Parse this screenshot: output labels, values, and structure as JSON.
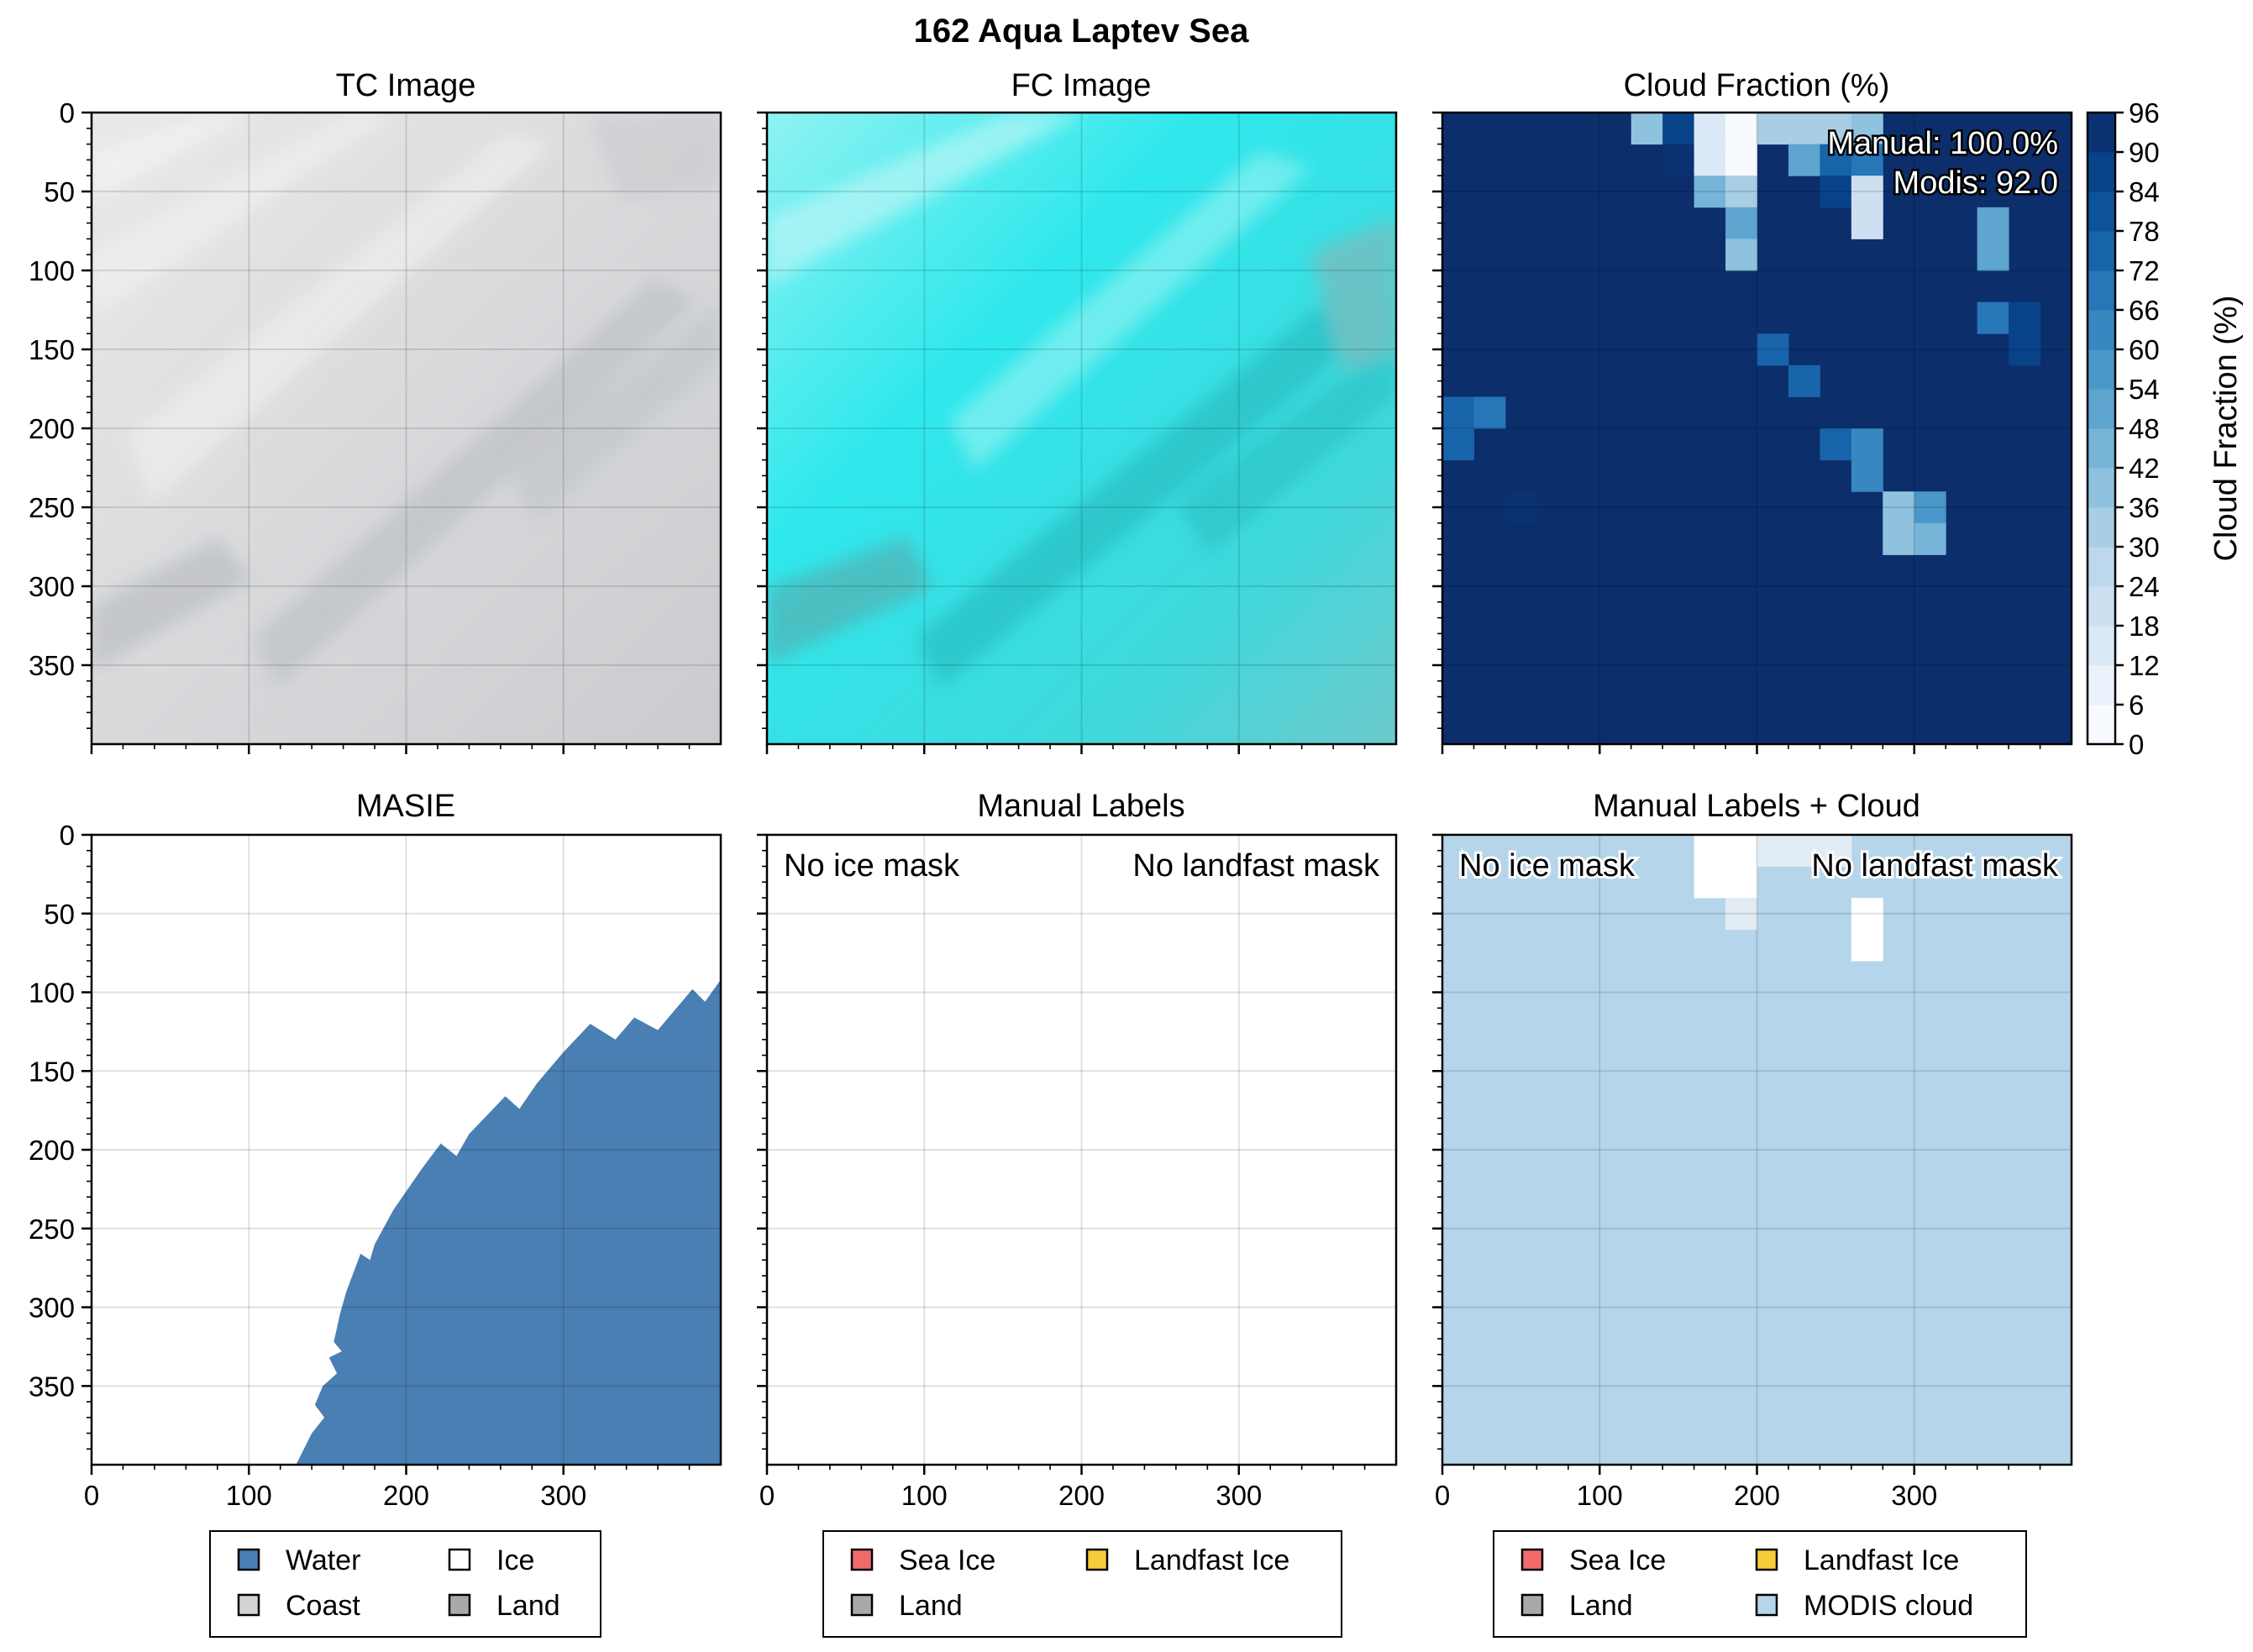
{
  "figure": {
    "suptitle": "162 Aqua Laptev Sea"
  },
  "colors": {
    "water": "#4a7fb4",
    "ice": "#ffffff",
    "coast": "#d3d3d3",
    "land": "#a9a9a9",
    "sea_ice": "#f26a6a",
    "landfast_ice": "#f5cc3a",
    "modis_cloud": "#b5d5ea",
    "cloud_bg": "#0c2e6b"
  },
  "chart_data": [
    {
      "id": "tc",
      "type": "image",
      "title": "TC Image",
      "xlim": [
        0,
        400
      ],
      "ylim": [
        400,
        0
      ],
      "yticks": [
        0,
        50,
        100,
        150,
        200,
        250,
        300,
        350
      ],
      "xticks": [
        0,
        100,
        200,
        300
      ],
      "xtick_labels_visible": false,
      "content": "true-color satellite image, grey-white cloud cover"
    },
    {
      "id": "fc",
      "type": "image",
      "title": "FC Image",
      "xlim": [
        0,
        400
      ],
      "ylim": [
        400,
        0
      ],
      "xticks": [
        0,
        100,
        200,
        300
      ],
      "xtick_labels_visible": false,
      "content": "false-color satellite image, cyan cloud cover"
    },
    {
      "id": "cloud",
      "type": "heatmap",
      "title": "Cloud Fraction (%)",
      "xlim": [
        0,
        400
      ],
      "ylim": [
        400,
        0
      ],
      "cell_size": 20,
      "background_value": 96,
      "cells": [
        {
          "x": 120,
          "y": 0,
          "v": 36
        },
        {
          "x": 140,
          "y": 0,
          "v": 84
        },
        {
          "x": 160,
          "y": 0,
          "v": 12
        },
        {
          "x": 180,
          "y": 0,
          "v": 0
        },
        {
          "x": 200,
          "y": 0,
          "v": 30
        },
        {
          "x": 220,
          "y": 0,
          "v": 30
        },
        {
          "x": 240,
          "y": 0,
          "v": 30
        },
        {
          "x": 260,
          "y": 0,
          "v": 36
        },
        {
          "x": 140,
          "y": 20,
          "v": 90
        },
        {
          "x": 160,
          "y": 20,
          "v": 12
        },
        {
          "x": 180,
          "y": 20,
          "v": 0
        },
        {
          "x": 220,
          "y": 20,
          "v": 48
        },
        {
          "x": 240,
          "y": 20,
          "v": 72
        },
        {
          "x": 260,
          "y": 20,
          "v": 66
        },
        {
          "x": 160,
          "y": 40,
          "v": 42
        },
        {
          "x": 180,
          "y": 40,
          "v": 30
        },
        {
          "x": 240,
          "y": 40,
          "v": 84
        },
        {
          "x": 260,
          "y": 40,
          "v": 18
        },
        {
          "x": 180,
          "y": 60,
          "v": 48
        },
        {
          "x": 260,
          "y": 60,
          "v": 18
        },
        {
          "x": 340,
          "y": 60,
          "v": 48
        },
        {
          "x": 180,
          "y": 80,
          "v": 36
        },
        {
          "x": 340,
          "y": 80,
          "v": 48
        },
        {
          "x": 340,
          "y": 120,
          "v": 66
        },
        {
          "x": 360,
          "y": 120,
          "v": 84
        },
        {
          "x": 360,
          "y": 140,
          "v": 84
        },
        {
          "x": 200,
          "y": 140,
          "v": 72
        },
        {
          "x": 220,
          "y": 160,
          "v": 72
        },
        {
          "x": 0,
          "y": 180,
          "v": 72
        },
        {
          "x": 20,
          "y": 180,
          "v": 66
        },
        {
          "x": 0,
          "y": 200,
          "v": 72
        },
        {
          "x": 240,
          "y": 200,
          "v": 72
        },
        {
          "x": 260,
          "y": 200,
          "v": 60
        },
        {
          "x": 260,
          "y": 220,
          "v": 60
        },
        {
          "x": 40,
          "y": 240,
          "v": 90
        },
        {
          "x": 280,
          "y": 240,
          "v": 36
        },
        {
          "x": 300,
          "y": 240,
          "v": 54
        },
        {
          "x": 280,
          "y": 260,
          "v": 36
        },
        {
          "x": 300,
          "y": 260,
          "v": 42
        }
      ],
      "annotations": [
        "Manual: 100.0%",
        "Modis: 92.0"
      ],
      "colorbar": {
        "label": "Cloud Fraction (%)",
        "levels": [
          0,
          6,
          12,
          18,
          24,
          30,
          36,
          42,
          48,
          54,
          60,
          66,
          72,
          78,
          84,
          90,
          96
        ],
        "tick_labels": [
          "0",
          "6",
          "12",
          "18",
          "24",
          "30",
          "36",
          "42",
          "48",
          "54",
          "60",
          "66",
          "72",
          "78",
          "84",
          "90",
          "96"
        ],
        "colors": [
          "#f7fbff",
          "#e9f2fb",
          "#dbe9f6",
          "#cde0f1",
          "#bdd7ec",
          "#a8cee4",
          "#8fc2de",
          "#76b4d8",
          "#5ea5d0",
          "#4a97c9",
          "#3787c0",
          "#2676b8",
          "#1864aa",
          "#0d539a",
          "#08438a",
          "#0a3273"
        ]
      }
    },
    {
      "id": "masie",
      "type": "area",
      "title": "MASIE",
      "xlim": [
        0,
        400
      ],
      "ylim": [
        400,
        0
      ],
      "xticks": [
        0,
        100,
        200,
        300
      ],
      "yticks": [
        0,
        50,
        100,
        150,
        200,
        250,
        300,
        350
      ],
      "water_boundary": [
        [
          400,
          92
        ],
        [
          390,
          106
        ],
        [
          382,
          98
        ],
        [
          360,
          124
        ],
        [
          345,
          116
        ],
        [
          333,
          130
        ],
        [
          317,
          120
        ],
        [
          300,
          138
        ],
        [
          283,
          158
        ],
        [
          272,
          174
        ],
        [
          263,
          166
        ],
        [
          240,
          190
        ],
        [
          232,
          204
        ],
        [
          222,
          196
        ],
        [
          210,
          212
        ],
        [
          192,
          238
        ],
        [
          180,
          260
        ],
        [
          177,
          270
        ],
        [
          171,
          266
        ],
        [
          162,
          290
        ],
        [
          158,
          304
        ],
        [
          154,
          322
        ],
        [
          159,
          328
        ],
        [
          151,
          332
        ],
        [
          156,
          342
        ],
        [
          147,
          350
        ],
        [
          142,
          362
        ],
        [
          148,
          370
        ],
        [
          140,
          380
        ],
        [
          134,
          392
        ],
        [
          130,
          400
        ]
      ],
      "legend": [
        {
          "label": "Water",
          "color_key": "water"
        },
        {
          "label": "Ice",
          "color_key": "ice"
        },
        {
          "label": "Coast",
          "color_key": "coast"
        },
        {
          "label": "Land",
          "color_key": "land"
        }
      ]
    },
    {
      "id": "manual",
      "type": "heatmap",
      "title": "Manual Labels",
      "xlim": [
        0,
        400
      ],
      "ylim": [
        400,
        0
      ],
      "xticks": [
        0,
        100,
        200,
        300
      ],
      "annotations": [
        "No ice mask",
        "No landfast mask"
      ],
      "legend": [
        {
          "label": "Sea Ice",
          "color_key": "sea_ice"
        },
        {
          "label": "Landfast Ice",
          "color_key": "landfast_ice"
        },
        {
          "label": "Land",
          "color_key": "land"
        }
      ]
    },
    {
      "id": "manual_cloud",
      "type": "heatmap",
      "title": "Manual Labels + Cloud",
      "xlim": [
        0,
        400
      ],
      "ylim": [
        400,
        0
      ],
      "xticks": [
        0,
        100,
        200,
        300
      ],
      "cloud_threshold": 20,
      "annotations": [
        "No ice mask",
        "No landfast mask"
      ],
      "legend": [
        {
          "label": "Sea Ice",
          "color_key": "sea_ice"
        },
        {
          "label": "Landfast Ice",
          "color_key": "landfast_ice"
        },
        {
          "label": "Land",
          "color_key": "land"
        },
        {
          "label": "MODIS cloud",
          "color_key": "modis_cloud"
        }
      ]
    }
  ]
}
